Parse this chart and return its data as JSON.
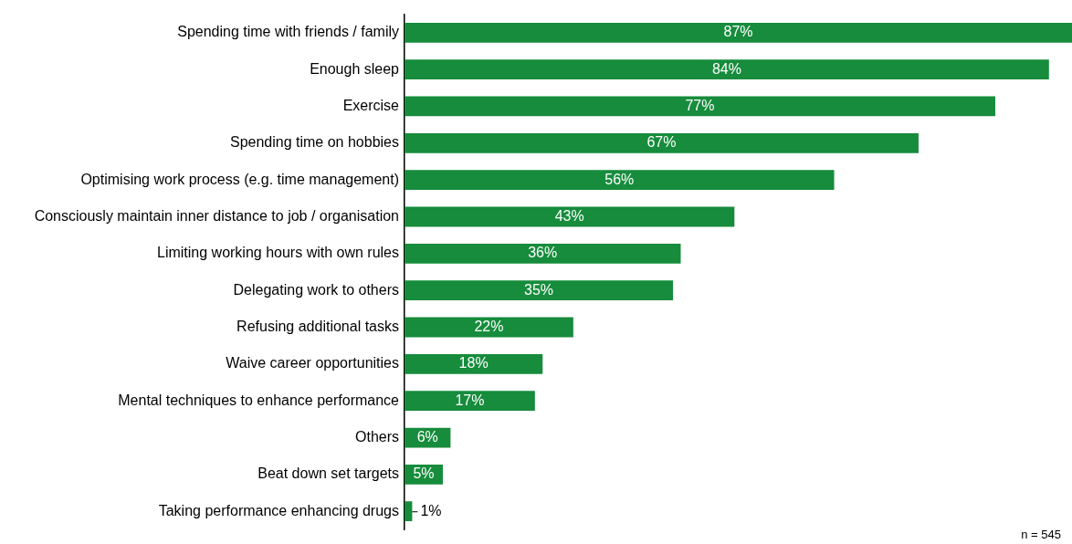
{
  "chart_data": {
    "type": "bar",
    "orientation": "horizontal",
    "categories": [
      "Spending time with friends / family",
      "Enough sleep",
      "Exercise",
      "Spending time on hobbies",
      "Optimising work process (e.g. time management)",
      "Consciously maintain inner distance to job / organisation",
      "Limiting working hours with own rules",
      "Delegating work to others",
      "Refusing additional tasks",
      "Waive career opportunities",
      "Mental techniques to enhance performance",
      "Others",
      "Beat down set targets",
      "Taking performance enhancing drugs"
    ],
    "values": [
      87,
      84,
      77,
      67,
      56,
      43,
      36,
      35,
      22,
      18,
      17,
      6,
      5,
      1
    ],
    "value_labels": [
      "87%",
      "84%",
      "77%",
      "67%",
      "56%",
      "43%",
      "36%",
      "35%",
      "22%",
      "18%",
      "17%",
      "6%",
      "5%",
      "1%"
    ],
    "color": "#168c3c",
    "xlim": [
      0,
      87
    ],
    "tick_labels": "y",
    "grid": false,
    "legend": false,
    "annotations": [
      "n = 545"
    ]
  }
}
